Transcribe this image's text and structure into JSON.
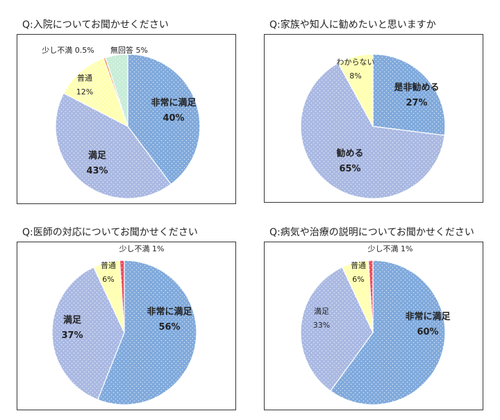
{
  "colors": {
    "very_satisfied": "#7fa9dc",
    "satisfied": "#a9b8e2",
    "normal": "#ffffb3",
    "slightly_dissatisfied": "#e9a35a",
    "no_answer": "#c7ecd8",
    "red_sliver": "#e94a5a",
    "recommend_strong": "#7fa9dc",
    "recommend": "#a9b8e2",
    "unknown": "#ffffb3"
  },
  "chart_data": [
    {
      "type": "pie",
      "title": "Q:入院についてお聞かせください",
      "slices": [
        {
          "label": "非常に満足",
          "pct_label": "40%",
          "value": 40,
          "color_key": "very_satisfied",
          "bold": true
        },
        {
          "label": "満足",
          "pct_label": "43%",
          "value": 43,
          "color_key": "satisfied",
          "bold": true
        },
        {
          "label": "普通",
          "pct_label": "12%",
          "value": 12,
          "color_key": "normal",
          "bold": false
        },
        {
          "label": "少し不満",
          "pct_label": "0.5%",
          "value": 0.5,
          "color_key": "slightly_dissatisfied",
          "bold": false
        },
        {
          "label": "無回答",
          "pct_label": "5%",
          "value": 5,
          "color_key": "no_answer",
          "bold": false
        }
      ]
    },
    {
      "type": "pie",
      "title": "Q:家族や知人に勧めたいと思いますか",
      "slices": [
        {
          "label": "是非勧める",
          "pct_label": "27%",
          "value": 27,
          "color_key": "recommend_strong",
          "bold": true
        },
        {
          "label": "勧める",
          "pct_label": "65%",
          "value": 65,
          "color_key": "recommend",
          "bold": true
        },
        {
          "label": "わからない",
          "pct_label": "8%",
          "value": 8,
          "color_key": "unknown",
          "bold": false
        }
      ]
    },
    {
      "type": "pie",
      "title": "Q:医師の対応についてお聞かせください",
      "slices": [
        {
          "label": "非常に満足",
          "pct_label": "56%",
          "value": 56,
          "color_key": "very_satisfied",
          "bold": true
        },
        {
          "label": "満足",
          "pct_label": "37%",
          "value": 37,
          "color_key": "satisfied",
          "bold": true
        },
        {
          "label": "普通",
          "pct_label": "6%",
          "value": 6,
          "color_key": "normal",
          "bold": false
        },
        {
          "label": "少し不満",
          "pct_label": "1%",
          "value": 1,
          "color_key": "red_sliver",
          "bold": false
        }
      ]
    },
    {
      "type": "pie",
      "title": "Q:病気や治療の説明についてお聞かせください",
      "slices": [
        {
          "label": "非常に満足",
          "pct_label": "60%",
          "value": 60,
          "color_key": "very_satisfied",
          "bold": true
        },
        {
          "label": "満足",
          "pct_label": "33%",
          "value": 33,
          "color_key": "satisfied",
          "bold": false
        },
        {
          "label": "普通",
          "pct_label": "6%",
          "value": 6,
          "color_key": "normal",
          "bold": false
        },
        {
          "label": "少し不満",
          "pct_label": "1%",
          "value": 1,
          "color_key": "red_sliver",
          "bold": false
        }
      ]
    }
  ]
}
